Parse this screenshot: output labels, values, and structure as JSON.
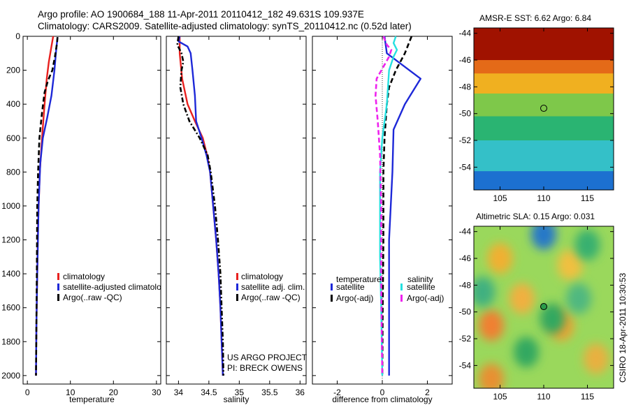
{
  "header": {
    "line1": "Argo profile: AO 1900684_188 11-Apr-2011 20110412_182 49.631S 109.937E",
    "line2": "Climatology: CARS2009. Satellite-adjusted climatology: synTS_20110412.nc (0.52d later)"
  },
  "stamp": "CSIRO 18-Apr-2011 10:30:53",
  "colors": {
    "climatology": "#e8201e",
    "satellite": "#1d28d8",
    "argo": "#000000",
    "sal_satellite": "#25e0e0",
    "sal_argo": "#ee22ee"
  },
  "chart_data": [
    {
      "type": "line",
      "xlabel": "temperature",
      "ylabel": "",
      "xlim": [
        -1,
        31
      ],
      "ylim": [
        2050,
        0
      ],
      "xticks": [
        0,
        10,
        20,
        30
      ],
      "yticks": [
        0,
        200,
        400,
        600,
        800,
        1000,
        1200,
        1400,
        1600,
        1800,
        2000
      ],
      "legend": [
        "climatology",
        "satellite-adjusted climatolo",
        "Argo(..raw -QC)"
      ],
      "series": [
        {
          "name": "climatology",
          "style": "solid",
          "color": "climatology",
          "points": [
            [
              6.0,
              0
            ],
            [
              5.6,
              60
            ],
            [
              5.0,
              150
            ],
            [
              4.5,
              250
            ],
            [
              4.0,
              400
            ],
            [
              3.4,
              600
            ],
            [
              2.9,
              800
            ],
            [
              2.5,
              1100
            ],
            [
              2.3,
              1400
            ],
            [
              2.1,
              1700
            ],
            [
              2.0,
              2000
            ]
          ]
        },
        {
          "name": "satellite-adjusted climatolo",
          "style": "solid",
          "color": "satellite",
          "points": [
            [
              7.0,
              5
            ],
            [
              6.7,
              80
            ],
            [
              6.3,
              200
            ],
            [
              5.6,
              350
            ],
            [
              4.6,
              480
            ],
            [
              3.6,
              600
            ],
            [
              3.0,
              750
            ],
            [
              2.6,
              1000
            ],
            [
              2.3,
              1400
            ],
            [
              2.1,
              1700
            ],
            [
              2.0,
              2000
            ]
          ]
        },
        {
          "name": "Argo(..raw -QC)",
          "style": "dashed",
          "color": "argo",
          "points": [
            [
              7.0,
              5
            ],
            [
              6.9,
              40
            ],
            [
              6.4,
              120
            ],
            [
              5.8,
              200
            ],
            [
              4.8,
              260
            ],
            [
              4.0,
              330
            ],
            [
              3.4,
              450
            ],
            [
              2.8,
              600
            ],
            [
              2.5,
              800
            ],
            [
              2.3,
              1000
            ],
            [
              2.2,
              1400
            ],
            [
              2.1,
              1700
            ],
            [
              2.0,
              2000
            ]
          ]
        }
      ]
    },
    {
      "type": "line",
      "xlabel": "salinity",
      "xlim": [
        33.8,
        36.1
      ],
      "ylim": [
        2050,
        0
      ],
      "xticks": [
        34,
        34.5,
        35,
        35.5,
        36
      ],
      "legend": [
        "climatology",
        "satellite adj. clim.",
        "Argo(..raw -QC)"
      ],
      "notes": [
        "US ARGO PROJECT",
        "PI: BRECK OWENS"
      ],
      "series": [
        {
          "name": "climatology",
          "style": "solid",
          "color": "climatology",
          "points": [
            [
              34.02,
              0
            ],
            [
              34.02,
              100
            ],
            [
              34.06,
              250
            ],
            [
              34.15,
              400
            ],
            [
              34.27,
              500
            ],
            [
              34.4,
              600
            ],
            [
              34.47,
              700
            ],
            [
              34.52,
              800
            ],
            [
              34.57,
              1000
            ],
            [
              34.62,
              1200
            ],
            [
              34.66,
              1400
            ],
            [
              34.69,
              1600
            ],
            [
              34.71,
              1800
            ],
            [
              34.73,
              2000
            ]
          ]
        },
        {
          "name": "satellite adj. clim.",
          "style": "solid",
          "color": "satellite",
          "points": [
            [
              34.02,
              0
            ],
            [
              34.0,
              30
            ],
            [
              34.15,
              60
            ],
            [
              34.2,
              100
            ],
            [
              34.23,
              200
            ],
            [
              34.27,
              350
            ],
            [
              34.29,
              500
            ],
            [
              34.38,
              600
            ],
            [
              34.46,
              700
            ],
            [
              34.52,
              800
            ],
            [
              34.57,
              1000
            ],
            [
              34.62,
              1200
            ],
            [
              34.66,
              1400
            ],
            [
              34.69,
              1600
            ],
            [
              34.71,
              1800
            ],
            [
              34.73,
              2000
            ]
          ]
        },
        {
          "name": "Argo(..raw -QC)",
          "style": "dashdot",
          "color": "argo",
          "points": [
            [
              34.0,
              0
            ],
            [
              33.98,
              50
            ],
            [
              34.05,
              100
            ],
            [
              34.08,
              150
            ],
            [
              34.05,
              200
            ],
            [
              34.03,
              300
            ],
            [
              34.08,
              400
            ],
            [
              34.18,
              500
            ],
            [
              34.35,
              600
            ],
            [
              34.48,
              700
            ],
            [
              34.53,
              800
            ],
            [
              34.6,
              1000
            ],
            [
              34.65,
              1200
            ],
            [
              34.69,
              1400
            ],
            [
              34.71,
              1600
            ],
            [
              34.73,
              1800
            ],
            [
              34.74,
              2000
            ]
          ]
        }
      ]
    },
    {
      "type": "line",
      "xlabel": "difference from climatology",
      "xlim": [
        -3.1,
        3.1
      ],
      "ylim": [
        2050,
        0
      ],
      "xticks": [
        -2,
        0,
        2
      ],
      "legend_titles": [
        "temperature",
        "salinity"
      ],
      "legend": [
        "satellite",
        "Argo(-adj)",
        "satellite",
        "Argo(-adj)"
      ],
      "series": [
        {
          "name": "temperature satellite",
          "style": "solid",
          "color": "satellite",
          "points": [
            [
              0.1,
              0
            ],
            [
              0.2,
              100
            ],
            [
              1.7,
              250
            ],
            [
              1.0,
              400
            ],
            [
              0.5,
              550
            ],
            [
              0.45,
              800
            ],
            [
              0.3,
              1200
            ],
            [
              0.3,
              1600
            ],
            [
              0.3,
              2000
            ]
          ]
        },
        {
          "name": "temperature Argo(-adj)",
          "style": "dashed",
          "color": "argo",
          "points": [
            [
              1.3,
              0
            ],
            [
              1.0,
              100
            ],
            [
              0.6,
              200
            ],
            [
              0.3,
              300
            ],
            [
              0.2,
              400
            ],
            [
              0.1,
              600
            ],
            [
              0.05,
              800
            ],
            [
              0.05,
              1200
            ],
            [
              0.02,
              1600
            ],
            [
              0.0,
              2000
            ]
          ]
        },
        {
          "name": "salinity satellite",
          "style": "solid",
          "color": "sal_satellite",
          "points": [
            [
              0.6,
              0
            ],
            [
              0.5,
              40
            ],
            [
              0.65,
              80
            ],
            [
              0.5,
              120
            ],
            [
              0.3,
              200
            ],
            [
              0.25,
              300
            ],
            [
              0.2,
              400
            ],
            [
              0.0,
              600
            ],
            [
              -0.1,
              800
            ],
            [
              -0.1,
              1000
            ],
            [
              -0.1,
              1300
            ],
            [
              -0.05,
              1600
            ],
            [
              0.0,
              2000
            ]
          ]
        },
        {
          "name": "salinity Argo(-adj)",
          "style": "dashed",
          "color": "sal_argo",
          "points": [
            [
              0.05,
              0
            ],
            [
              0.2,
              50
            ],
            [
              0.4,
              80
            ],
            [
              0.3,
              120
            ],
            [
              -0.25,
              250
            ],
            [
              -0.3,
              350
            ],
            [
              -0.2,
              500
            ],
            [
              -0.1,
              700
            ],
            [
              -0.05,
              1000
            ],
            [
              -0.05,
              1400
            ],
            [
              -0.02,
              1800
            ],
            [
              0.0,
              2000
            ]
          ]
        }
      ]
    },
    {
      "type": "heatmap",
      "title": "AMSR-E SST: 6.62 Argo: 6.84",
      "xlim": [
        102,
        118
      ],
      "ylim": [
        -55.7,
        -43.6
      ],
      "xticks": [
        105,
        110,
        115
      ],
      "yticks": [
        -44,
        -46,
        -48,
        -50,
        -52,
        -54
      ],
      "marker": [
        110,
        -49.6
      ],
      "bands": [
        {
          "ymin": -46,
          "ymax": -43.6,
          "color": "#a01200"
        },
        {
          "ymin": -47,
          "ymax": -46,
          "color": "#e46a18"
        },
        {
          "ymin": -48.5,
          "ymax": -47,
          "color": "#f0b020"
        },
        {
          "ymin": -50.2,
          "ymax": -48.5,
          "color": "#7ec84a"
        },
        {
          "ymin": -52,
          "ymax": -50.2,
          "color": "#2ab472"
        },
        {
          "ymin": -54.3,
          "ymax": -52,
          "color": "#34c0c8"
        },
        {
          "ymin": -55.7,
          "ymax": -54.3,
          "color": "#1c70d0"
        }
      ]
    },
    {
      "type": "heatmap",
      "title": "Altimetric SLA: 0.15 Argo: 0.031",
      "xlim": [
        102,
        118
      ],
      "ylim": [
        -55.7,
        -43.6
      ],
      "xticks": [
        105,
        110,
        115
      ],
      "yticks": [
        -44,
        -46,
        -48,
        -50,
        -52,
        -54
      ],
      "marker": [
        110,
        -49.6
      ],
      "base_color": "#9ad85c",
      "blobs": [
        {
          "x": 110,
          "y": -44.2,
          "color": "#2878c8"
        },
        {
          "x": 105,
          "y": -46,
          "color": "#f0b030"
        },
        {
          "x": 113,
          "y": -46.5,
          "color": "#f0c040"
        },
        {
          "x": 107.5,
          "y": -49,
          "color": "#f0b040"
        },
        {
          "x": 104,
          "y": -51,
          "color": "#f08030"
        },
        {
          "x": 112,
          "y": -51,
          "color": "#f0a030"
        },
        {
          "x": 116,
          "y": -53.5,
          "color": "#e8b040"
        },
        {
          "x": 104,
          "y": -55,
          "color": "#e89030"
        },
        {
          "x": 111,
          "y": -50.5,
          "color": "#30a860"
        },
        {
          "x": 115,
          "y": -45,
          "color": "#38b070"
        },
        {
          "x": 108,
          "y": -53,
          "color": "#30a860"
        },
        {
          "x": 103,
          "y": -48.5,
          "color": "#40b080"
        },
        {
          "x": 114,
          "y": -49,
          "color": "#50b880"
        }
      ]
    }
  ]
}
